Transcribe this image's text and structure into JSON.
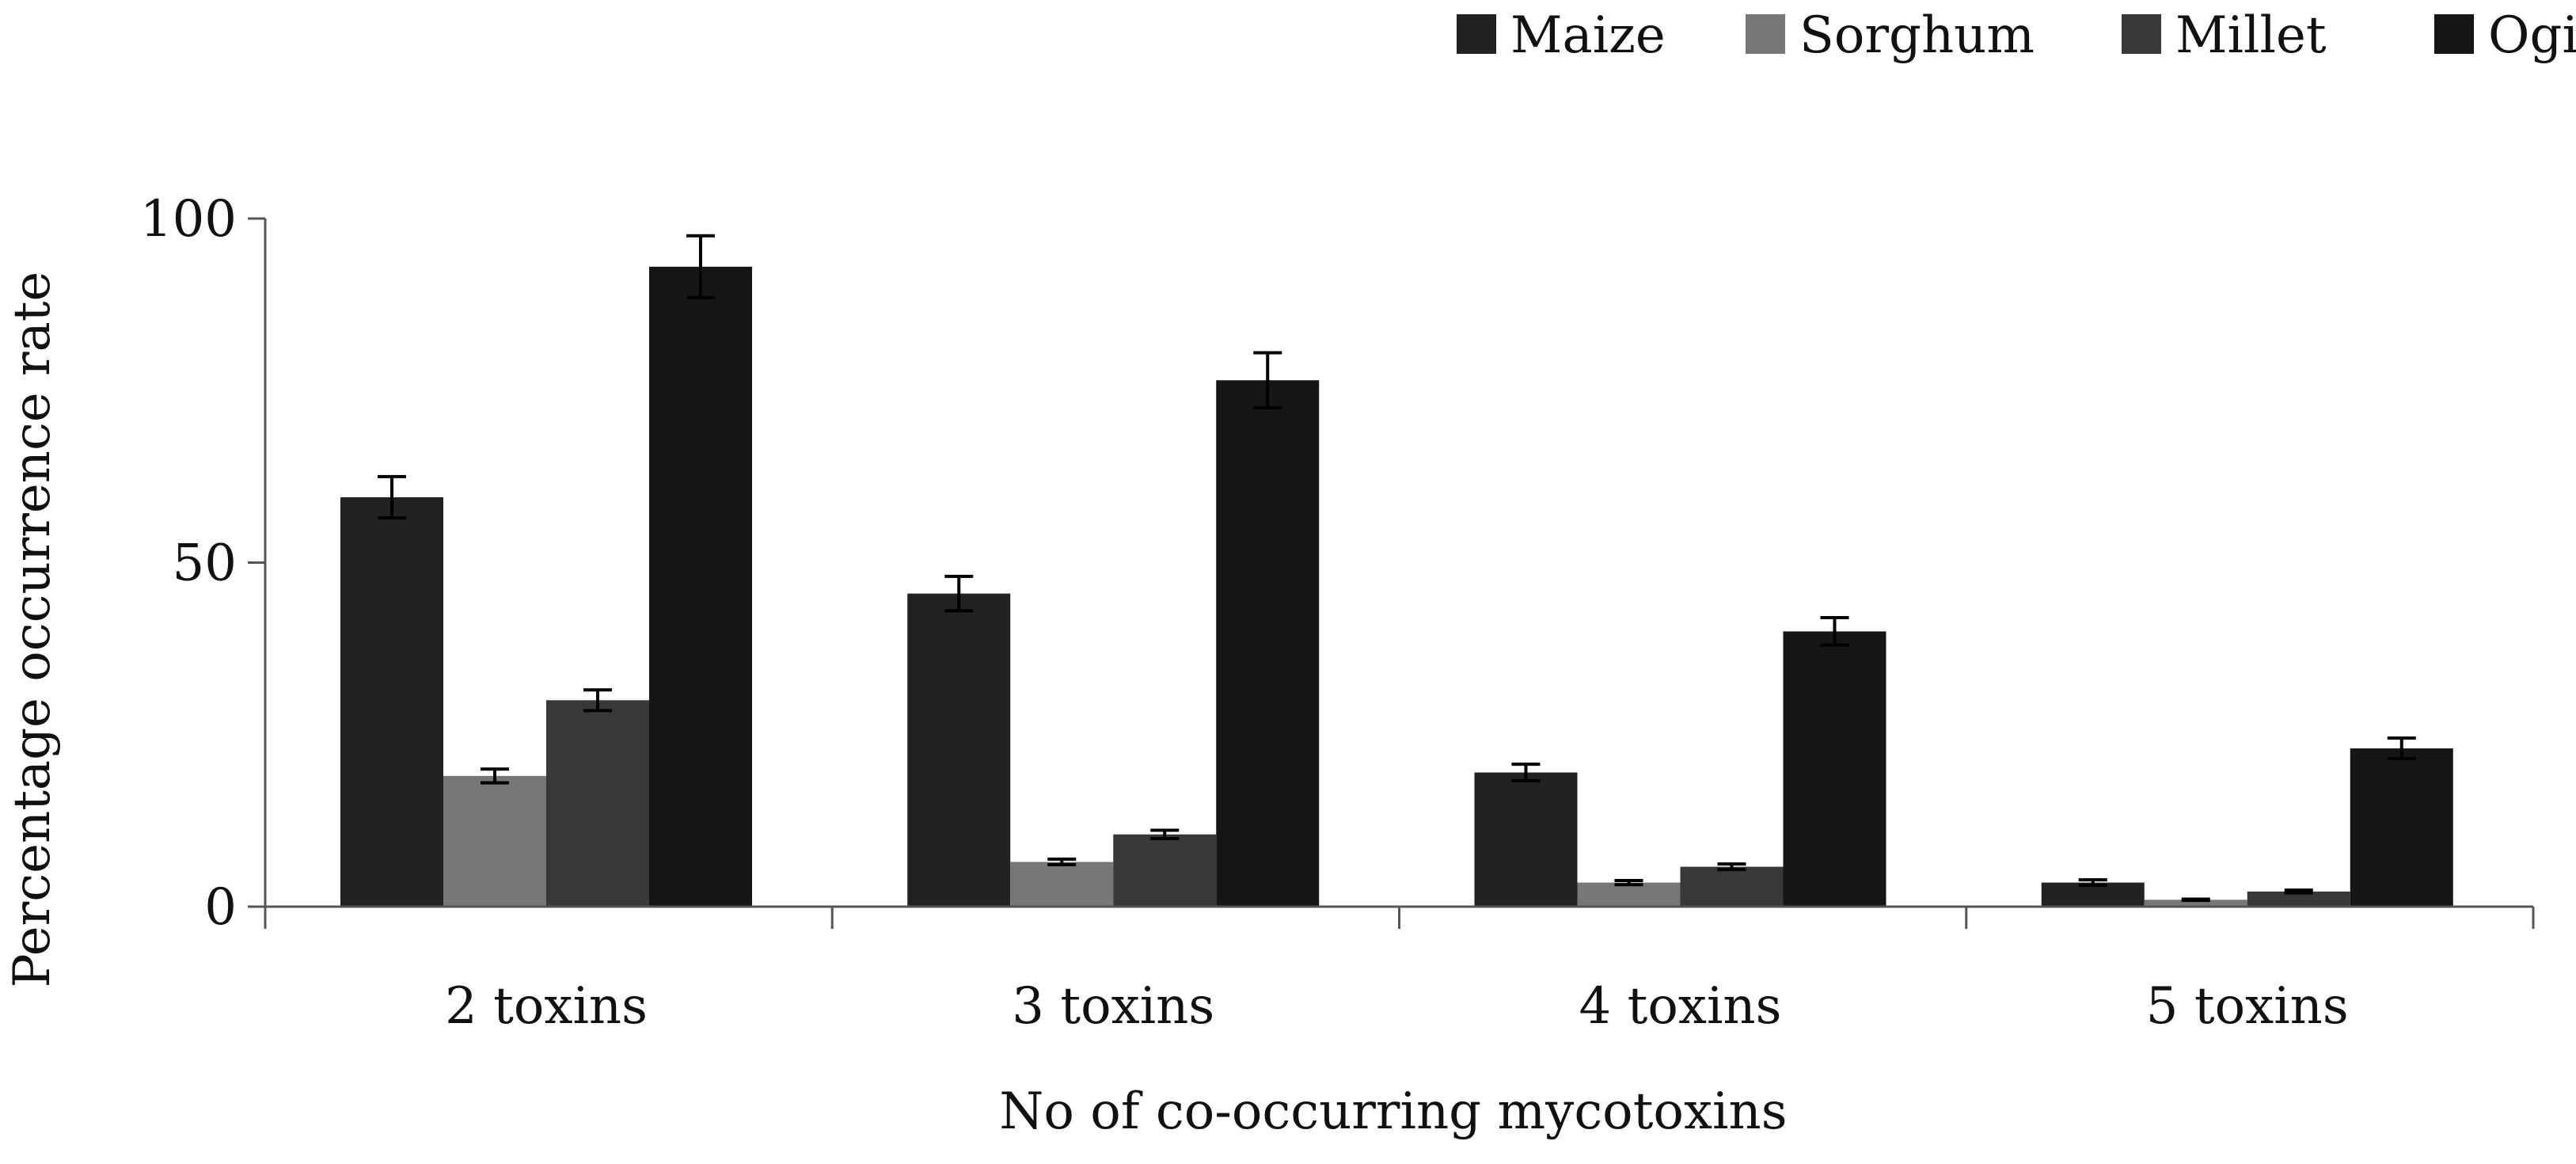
{
  "chart_data": {
    "type": "bar",
    "title": "",
    "xlabel": "No of co-occurring mycotoxins",
    "ylabel": "Percentage occurrence rate",
    "categories": [
      "2 toxins",
      "3 toxins",
      "4 toxins",
      "5 toxins"
    ],
    "series": [
      {
        "name": "Maize",
        "values": [
          59.5,
          45.5,
          19.5,
          3.5
        ],
        "errors": [
          3.0,
          2.5,
          1.2,
          0.4
        ],
        "color": "#222222"
      },
      {
        "name": "Sorghum",
        "values": [
          19.0,
          6.5,
          3.5,
          1.0
        ],
        "errors": [
          1.0,
          0.4,
          0.3,
          0.1
        ],
        "color": "#777777"
      },
      {
        "name": "Millet",
        "values": [
          30.0,
          10.5,
          5.8,
          2.2
        ],
        "errors": [
          1.5,
          0.6,
          0.4,
          0.2
        ],
        "color": "#383838"
      },
      {
        "name": "Ogi",
        "values": [
          93.0,
          76.5,
          40.0,
          23.0
        ],
        "errors": [
          4.5,
          4.0,
          2.0,
          1.5
        ],
        "color": "#161616"
      }
    ],
    "y_ticks": [
      0,
      50,
      100
    ],
    "ylim": [
      0,
      100
    ],
    "grid": false,
    "legend_position": "top-right",
    "error_bars": true
  }
}
